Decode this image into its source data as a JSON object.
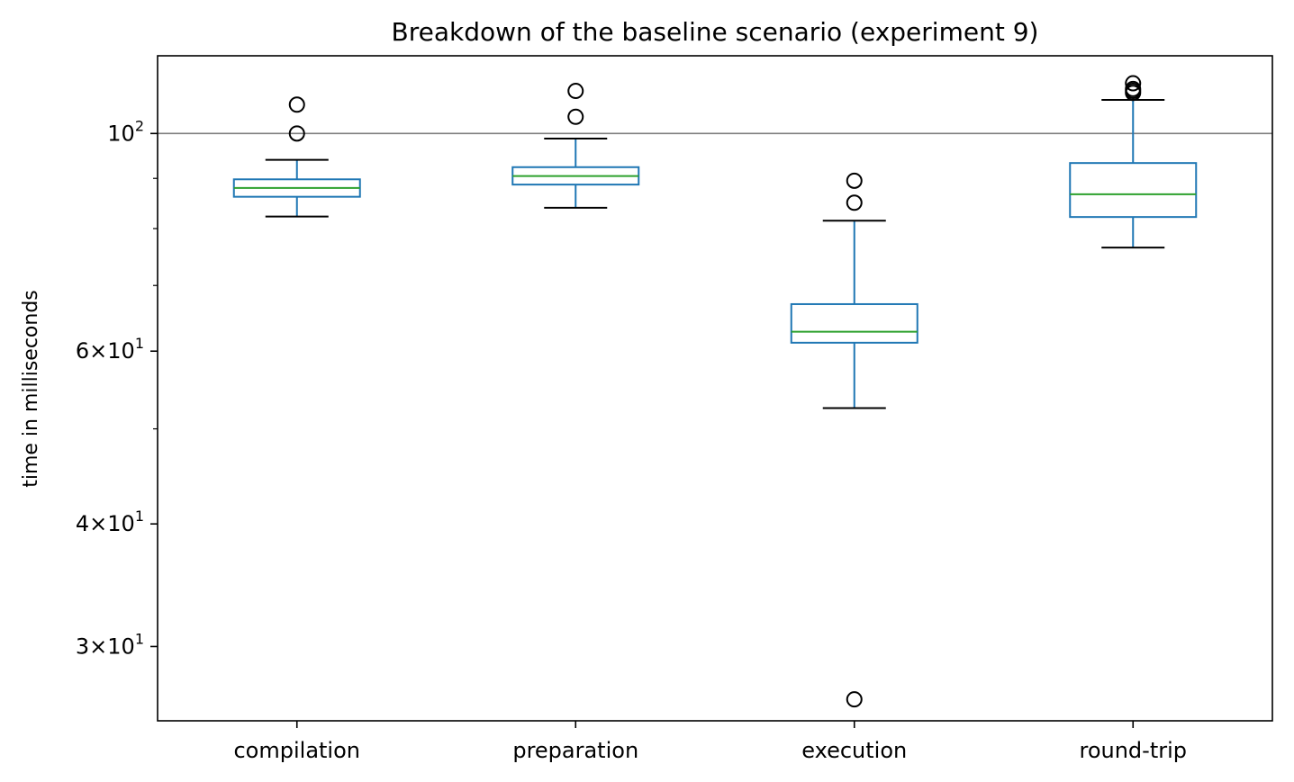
{
  "chart_data": {
    "type": "box",
    "title": "Breakdown of the baseline scenario (experiment 9)",
    "xlabel": "",
    "ylabel": "time in milliseconds",
    "yscale": "log",
    "ylim": [
      25.2,
      120
    ],
    "grid": false,
    "reference_line": {
      "y": 100,
      "color": "#808080"
    },
    "colors": {
      "box": "#1f77b4",
      "median": "#2ca02c",
      "whisker_cap": "#000000",
      "flier": "#000000"
    },
    "categories": [
      "compilation",
      "preparation",
      "execution",
      "round-trip"
    ],
    "boxes": [
      {
        "label": "compilation",
        "whislo": 82.3,
        "q1": 86.2,
        "median": 88.0,
        "q3": 89.8,
        "whishi": 94.0,
        "fliers": [
          100.0,
          107.0
        ]
      },
      {
        "label": "preparation",
        "whislo": 84.0,
        "q1": 88.7,
        "median": 90.5,
        "q3": 92.4,
        "whishi": 98.8,
        "fliers": [
          104.0,
          110.5
        ]
      },
      {
        "label": "execution",
        "whislo": 52.5,
        "q1": 61.2,
        "median": 62.8,
        "q3": 67.0,
        "whishi": 81.5,
        "fliers": [
          26.5,
          85.0,
          89.5
        ]
      },
      {
        "label": "round-trip",
        "whislo": 76.5,
        "q1": 82.2,
        "median": 86.7,
        "q3": 93.3,
        "whishi": 108.2,
        "fliers": [
          110.0,
          110.5,
          111.0,
          112.5
        ]
      }
    ],
    "yticks": [
      {
        "value": 30,
        "base": "3",
        "mult": "×",
        "exp_base": "10",
        "exp": "1"
      },
      {
        "value": 40,
        "base": "4",
        "mult": "×",
        "exp_base": "10",
        "exp": "1"
      },
      {
        "value": 60,
        "base": "6",
        "mult": "×",
        "exp_base": "10",
        "exp": "1"
      },
      {
        "value": 100,
        "base": "",
        "mult": "",
        "exp_base": "10",
        "exp": "2"
      }
    ],
    "minor_yticks": [
      50,
      70,
      80,
      90
    ]
  }
}
